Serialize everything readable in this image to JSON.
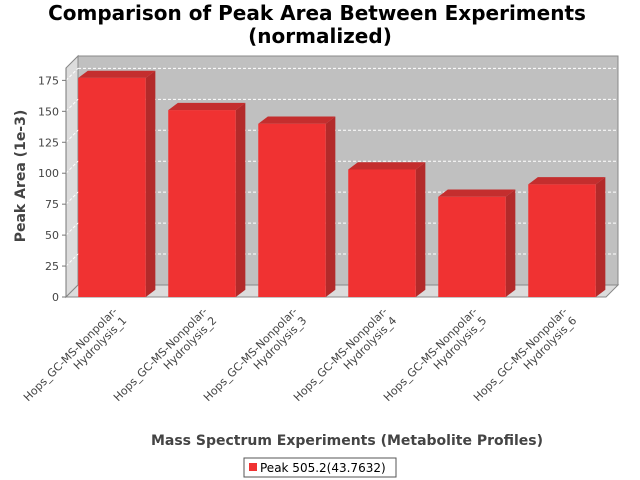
{
  "chart_data": {
    "type": "bar",
    "title_line1": "Comparison of Peak Area Between Experiments",
    "title_line2": "(normalized)",
    "xlabel": "Mass Spectrum Experiments (Metabolite Profiles)",
    "ylabel": "Peak Area (1e-3)",
    "categories": [
      [
        "Hops_GC-MS-Nonpolar-",
        "Hydrolysis_1"
      ],
      [
        "Hops_GC-MS-Nonpolar-",
        "Hydrolysis_2"
      ],
      [
        "Hops_GC-MS-Nonpolar-",
        "Hydrolysis_3"
      ],
      [
        "Hops_GC-MS-Nonpolar-",
        "Hydrolysis_4"
      ],
      [
        "Hops_GC-MS-Nonpolar-",
        "Hydrolysis_5"
      ],
      [
        "Hops_GC-MS-Nonpolar-",
        "Hydrolysis_6"
      ]
    ],
    "series": [
      {
        "name": "Peak 505.2(43.7632)",
        "color": "#f03232",
        "values": [
          177,
          151,
          140,
          103,
          81,
          91
        ]
      }
    ],
    "ylim": [
      0,
      185
    ],
    "yticks": [
      0,
      25,
      50,
      75,
      100,
      125,
      150,
      175
    ],
    "grid": true,
    "legend_position": "bottom-center",
    "plot_background": "#c0c0c0"
  }
}
